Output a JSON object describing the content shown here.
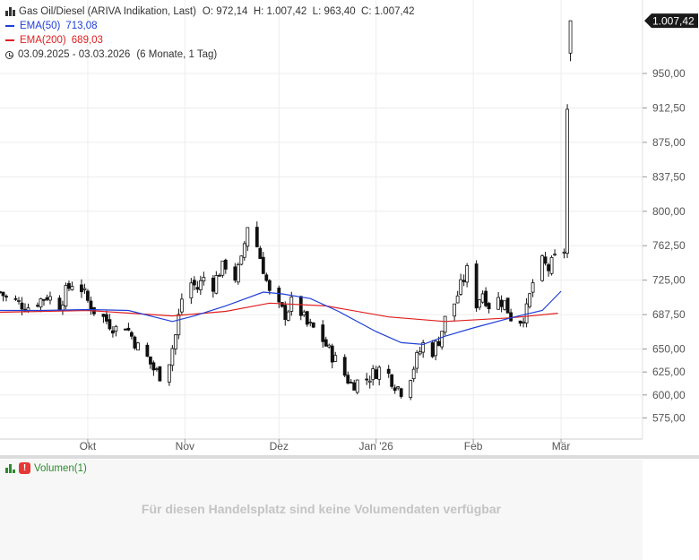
{
  "legend": {
    "icon": "candlestick-icon",
    "instrument": "Gas Oil/Diesel (ARIVA Indikation, Last)",
    "ohlc": "O: 972,14  H: 1.007,42  L: 963,40  C: 1.007,42",
    "ema50_label": "EMA(50)",
    "ema50_value": "713,08",
    "ema50_color": "#1f3fd6",
    "ema200_label": "EMA(200)",
    "ema200_value": "689,03",
    "ema200_color": "#e02020",
    "range": "03.09.2025 - 03.03.2026",
    "range_detail": "(6 Monate, 1 Tag)"
  },
  "volume": {
    "label": "Volumen(1)",
    "message": "Für diesen Handelsplatz sind keine Volumendaten verfügbar"
  },
  "chart_data": {
    "type": "candlestick",
    "last_price_label": "1.007,42",
    "y_ticks": [
      "575,00",
      "600,00",
      "625,00",
      "650,00",
      "687,50",
      "725,00",
      "762,50",
      "800,00",
      "837,50",
      "875,00",
      "912,50",
      "950,00"
    ],
    "y_tick_values": [
      575,
      600,
      625,
      650,
      687.5,
      725,
      762.5,
      800,
      837.5,
      875,
      912.5,
      950
    ],
    "ylim": [
      552,
      1030
    ],
    "x_labels": [
      "Okt",
      "Nov",
      "Dez",
      "Jan '26",
      "Feb",
      "Mär"
    ],
    "x_label_dates": [
      "2025-10-01",
      "2025-11-01",
      "2025-12-01",
      "2026-01-01",
      "2026-02-01",
      "2026-03-01"
    ],
    "x_range": [
      "2025-09-03",
      "2026-03-27"
    ],
    "grid": true,
    "close_path": [
      [
        "2025-09-03",
        712
      ],
      [
        "2025-09-05",
        706
      ],
      [
        "2025-09-09",
        700
      ],
      [
        "2025-09-12",
        696
      ],
      [
        "2025-09-15",
        702
      ],
      [
        "2025-09-18",
        708
      ],
      [
        "2025-09-22",
        698
      ],
      [
        "2025-09-24",
        712
      ],
      [
        "2025-09-26",
        722
      ],
      [
        "2025-09-29",
        716
      ],
      [
        "2025-10-01",
        702
      ],
      [
        "2025-10-03",
        692
      ],
      [
        "2025-10-06",
        684
      ],
      [
        "2025-10-08",
        678
      ],
      [
        "2025-10-10",
        672
      ],
      [
        "2025-10-13",
        676
      ],
      [
        "2025-10-15",
        664
      ],
      [
        "2025-10-17",
        652
      ],
      [
        "2025-10-20",
        640
      ],
      [
        "2025-10-22",
        628
      ],
      [
        "2025-10-24",
        622
      ],
      [
        "2025-10-27",
        638
      ],
      [
        "2025-10-29",
        665
      ],
      [
        "2025-10-31",
        705
      ],
      [
        "2025-11-03",
        722
      ],
      [
        "2025-11-05",
        716
      ],
      [
        "2025-11-07",
        728
      ],
      [
        "2025-11-10",
        720
      ],
      [
        "2025-11-12",
        735
      ],
      [
        "2025-11-14",
        742
      ],
      [
        "2025-11-17",
        728
      ],
      [
        "2025-11-19",
        745
      ],
      [
        "2025-11-21",
        785
      ],
      [
        "2025-11-24",
        762
      ],
      [
        "2025-11-26",
        738
      ],
      [
        "2025-11-28",
        710
      ],
      [
        "2025-12-01",
        695
      ],
      [
        "2025-12-03",
        688
      ],
      [
        "2025-12-05",
        700
      ],
      [
        "2025-12-08",
        690
      ],
      [
        "2025-12-10",
        676
      ],
      [
        "2025-12-12",
        672
      ],
      [
        "2025-12-15",
        660
      ],
      [
        "2025-12-17",
        648
      ],
      [
        "2025-12-19",
        638
      ],
      [
        "2025-12-22",
        622
      ],
      [
        "2025-12-24",
        612
      ],
      [
        "2025-12-29",
        618
      ],
      [
        "2026-01-02",
        628
      ],
      [
        "2026-01-05",
        622
      ],
      [
        "2026-01-07",
        612
      ],
      [
        "2026-01-09",
        605
      ],
      [
        "2026-01-12",
        622
      ],
      [
        "2026-01-14",
        640
      ],
      [
        "2026-01-16",
        655
      ],
      [
        "2026-01-19",
        648
      ],
      [
        "2026-01-21",
        660
      ],
      [
        "2026-01-23",
        682
      ],
      [
        "2026-01-26",
        700
      ],
      [
        "2026-01-28",
        718
      ],
      [
        "2026-01-30",
        735
      ],
      [
        "2026-02-02",
        700
      ],
      [
        "2026-02-04",
        712
      ],
      [
        "2026-02-06",
        698
      ],
      [
        "2026-02-09",
        704
      ],
      [
        "2026-02-11",
        700
      ],
      [
        "2026-02-13",
        685
      ],
      [
        "2026-02-16",
        682
      ],
      [
        "2026-02-18",
        692
      ],
      [
        "2026-02-20",
        722
      ],
      [
        "2026-02-23",
        744
      ],
      [
        "2026-02-25",
        737
      ],
      [
        "2026-02-27",
        748
      ],
      [
        "2026-03-02",
        758
      ],
      [
        "2026-03-03",
        910
      ],
      [
        "2026-03-04",
        1007
      ]
    ],
    "series": [
      {
        "name": "EMA(50)",
        "color": "#1f3fd6",
        "points": [
          [
            "2025-09-03",
            692
          ],
          [
            "2025-09-16",
            692
          ],
          [
            "2025-10-01",
            693
          ],
          [
            "2025-10-14",
            692
          ],
          [
            "2025-10-28",
            680
          ],
          [
            "2025-11-04",
            686
          ],
          [
            "2025-11-14",
            697
          ],
          [
            "2025-11-26",
            712
          ],
          [
            "2025-12-02",
            710
          ],
          [
            "2025-12-11",
            705
          ],
          [
            "2025-12-20",
            691
          ],
          [
            "2026-01-01",
            669
          ],
          [
            "2026-01-09",
            657
          ],
          [
            "2026-01-16",
            655
          ],
          [
            "2026-01-23",
            664
          ],
          [
            "2026-02-01",
            673
          ],
          [
            "2026-02-13",
            684
          ],
          [
            "2026-02-23",
            692
          ],
          [
            "2026-03-01",
            713
          ]
        ]
      },
      {
        "name": "EMA(200)",
        "color": "#e02020",
        "points": [
          [
            "2025-09-03",
            690
          ],
          [
            "2025-10-01",
            692
          ],
          [
            "2025-10-28",
            686
          ],
          [
            "2025-11-14",
            691
          ],
          [
            "2025-11-28",
            700
          ],
          [
            "2025-12-16",
            697
          ],
          [
            "2026-01-05",
            685
          ],
          [
            "2026-01-23",
            680
          ],
          [
            "2026-02-13",
            684
          ],
          [
            "2026-02-28",
            689
          ]
        ]
      }
    ]
  }
}
